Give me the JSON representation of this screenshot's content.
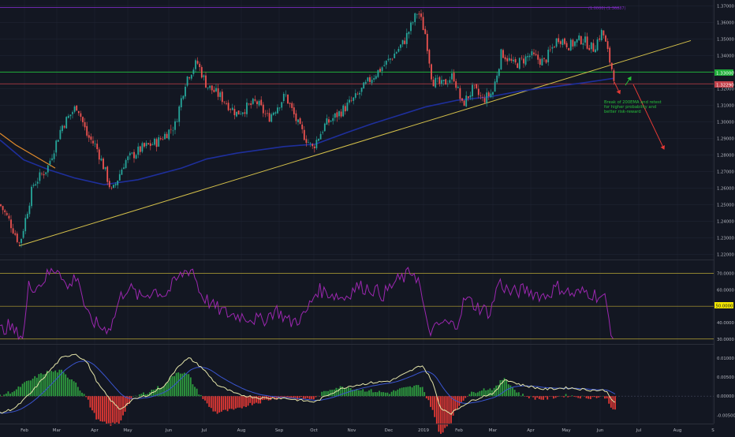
{
  "colors": {
    "background": "#131722",
    "grid": "#1f2433",
    "axis_text": "#b2b5be",
    "candle_up": "#26a69a",
    "candle_down": "#ef5350",
    "ma200": "#1e2f9c",
    "ma_orange": "#e08a2a",
    "trendline": "#d4c04a",
    "resistance": "#1fae3a",
    "support": "#c2404a",
    "fib_line": "#7a2bbd",
    "rsi_line": "#9c27b0",
    "rsi_level": "#b8a534",
    "macd_line": "#e6e6aa",
    "signal_line": "#3a55d0",
    "hist_up": "#2e9c3f",
    "hist_down": "#e53935",
    "annotation": "#26c03a",
    "arrow_green": "#26c03a",
    "arrow_red": "#e53935"
  },
  "chart_data": [
    {
      "type": "candlestick",
      "panel": "price",
      "y_ticks": [
        "1.37000",
        "1.36000",
        "1.35000",
        "1.34000",
        "1.33000",
        "1.32000",
        "1.31000",
        "1.30000",
        "1.29000",
        "1.28000",
        "1.27000",
        "1.26000",
        "1.25000",
        "1.24000",
        "1.23000",
        "1.22000"
      ],
      "ylim": [
        1.2168,
        1.3735
      ],
      "price_labels": {
        "resistance": "1.33000",
        "current": "1.32290"
      },
      "fib_label": "(1.0000) (1.36887)",
      "annotation": [
        "Break of 200EMA and retest",
        "for higher probability and",
        "better risk-reward"
      ],
      "key_points": [
        {
          "date": "Jan 30",
          "price": 1.225
        },
        {
          "date": "Mar 15",
          "price": 1.31
        },
        {
          "date": "May 5",
          "price": 1.255
        },
        {
          "date": "Jun 25",
          "price": 1.338
        },
        {
          "date": "Oct 1",
          "price": 1.282
        },
        {
          "date": "Dec 25",
          "price": 1.367
        },
        {
          "date": "Feb 10",
          "price": 1.308
        },
        {
          "date": "Jun 5",
          "price": 1.356
        },
        {
          "date": "Jun 14",
          "price": 1.3229
        }
      ]
    },
    {
      "type": "line",
      "panel": "rsi",
      "y_ticks": [
        "70.0000",
        "60.0000",
        "50.0000",
        "40.0000",
        "30.0000"
      ],
      "highlight": "50.0000",
      "ylim": [
        27,
        78
      ],
      "levels": [
        70,
        50,
        30
      ]
    },
    {
      "type": "bar",
      "panel": "macd",
      "y_ticks": [
        "0.01000",
        "0.00500",
        "0.00000",
        "-0.00500"
      ],
      "ylim": [
        -0.0072,
        0.0135
      ]
    }
  ],
  "x_axis": {
    "labels": [
      "Feb",
      "Mar",
      "Apr",
      "May",
      "Jun",
      "Jul",
      "Aug",
      "Sep",
      "Oct",
      "Nov",
      "Dec",
      "2019",
      "Feb",
      "Mar",
      "Apr",
      "May",
      "Jun",
      "Jul",
      "Aug",
      "S"
    ]
  }
}
